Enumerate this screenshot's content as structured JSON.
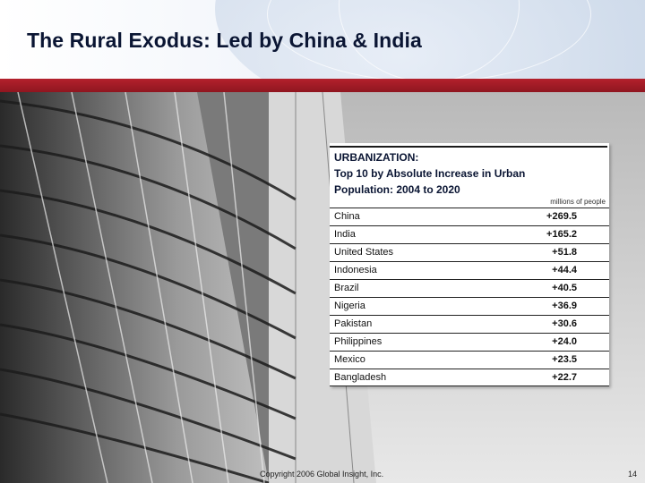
{
  "slide": {
    "title": "The Rural Exodus: Led by China & India",
    "footer": "Copyright 2006 Global Insight, Inc.",
    "page_number": "14"
  },
  "table": {
    "heading_bold": "URBANIZATION:",
    "heading_line2": "Top 10 by Absolute Increase in Urban",
    "heading_line3": "Population: 2004 to 2020",
    "units": "millions of people",
    "rows": [
      {
        "country": "China",
        "value": "+269.5"
      },
      {
        "country": "India",
        "value": "+165.2"
      },
      {
        "country": "United States",
        "value": "+51.8"
      },
      {
        "country": "Indonesia",
        "value": "+44.4"
      },
      {
        "country": "Brazil",
        "value": "+40.5"
      },
      {
        "country": "Nigeria",
        "value": "+36.9"
      },
      {
        "country": "Pakistan",
        "value": "+30.6"
      },
      {
        "country": "Philippines",
        "value": "+24.0"
      },
      {
        "country": "Mexico",
        "value": "+23.5"
      },
      {
        "country": "Bangladesh",
        "value": "+22.7"
      }
    ]
  },
  "colors": {
    "title": "#0a1533",
    "accent_bar": "#a41c27"
  }
}
